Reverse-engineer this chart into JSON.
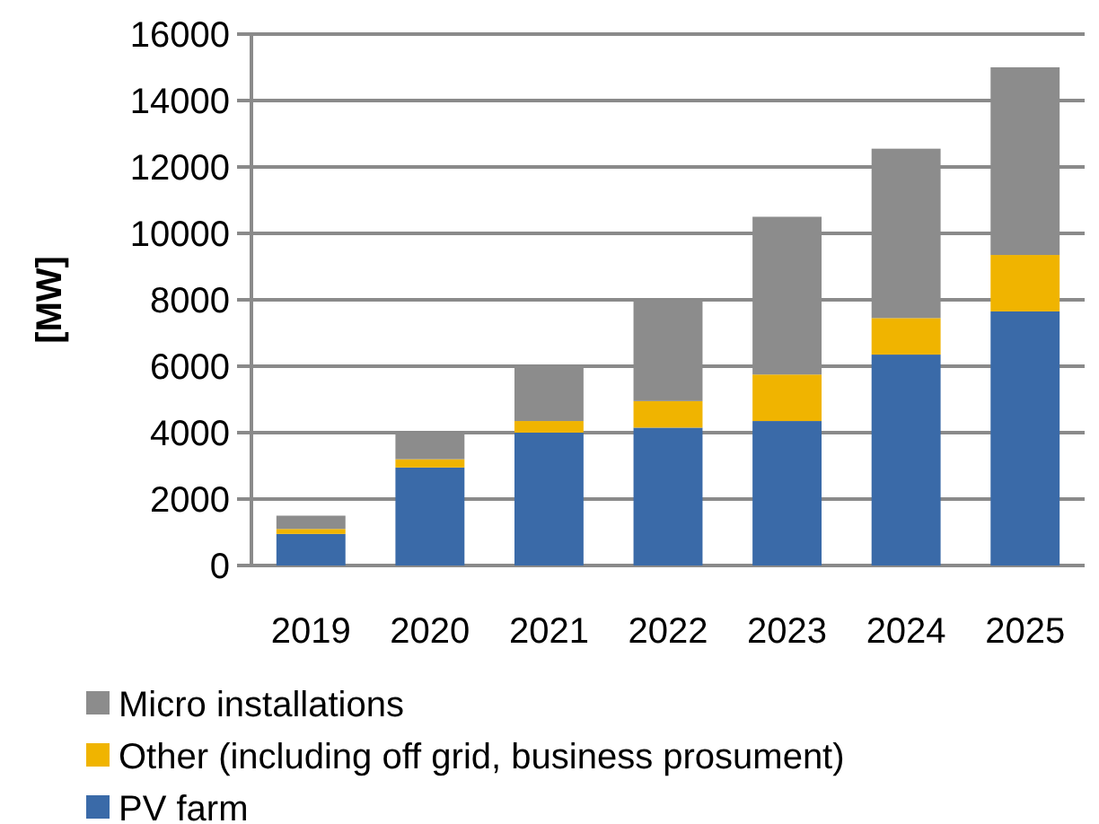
{
  "chart_data": {
    "type": "bar",
    "stacked": true,
    "ylabel": "[MW]",
    "categories": [
      "2019",
      "2020",
      "2021",
      "2022",
      "2023",
      "2024",
      "2025"
    ],
    "series": [
      {
        "name": "PV farm",
        "color": "#3a6aa8",
        "values": [
          950,
          2950,
          4000,
          4150,
          4350,
          6350,
          7650
        ]
      },
      {
        "name": "Other (including off grid, business prosument)",
        "color": "#f0b400",
        "values": [
          150,
          250,
          350,
          800,
          1400,
          1100,
          1700
        ]
      },
      {
        "name": "Micro installations",
        "color": "#8c8c8c",
        "values": [
          400,
          800,
          1650,
          3050,
          4750,
          5100,
          5650
        ]
      }
    ],
    "ylim": [
      0,
      16000
    ],
    "yticks": [
      0,
      2000,
      4000,
      6000,
      8000,
      10000,
      12000,
      14000,
      16000
    ],
    "grid": "y",
    "legend": "bottom"
  }
}
